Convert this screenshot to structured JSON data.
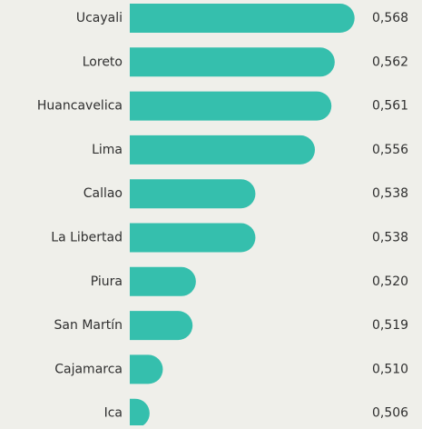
{
  "chart_data": {
    "type": "barh",
    "categories": [
      "Ucayali",
      "Loreto",
      "Huancavelica",
      "Lima",
      "Callao",
      "La Libertad",
      "Piura",
      "San Martín",
      "Cajamarca",
      "Ica"
    ],
    "values": [
      0.568,
      0.562,
      0.561,
      0.556,
      0.538,
      0.538,
      0.52,
      0.519,
      0.51,
      0.506
    ],
    "value_labels": [
      "0,568",
      "0,562",
      "0,561",
      "0,556",
      "0,538",
      "0,538",
      "0,520",
      "0,519",
      "0,510",
      "0,506"
    ],
    "color": "#35bfad",
    "xlim": [
      0.5,
      0.57
    ]
  }
}
